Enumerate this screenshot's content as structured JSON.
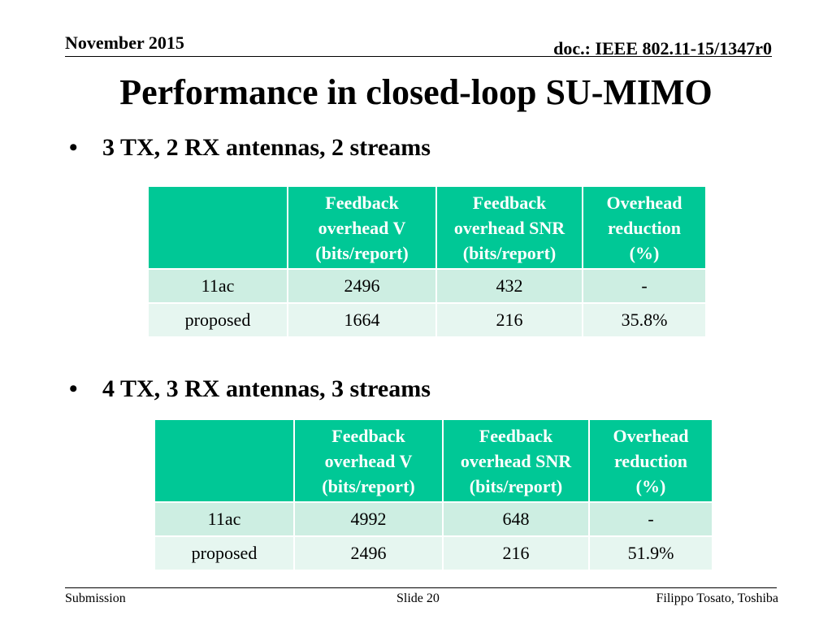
{
  "header": {
    "date": "November 2015",
    "doc": "doc.: IEEE 802.11-15/1347r0"
  },
  "title": "Performance in closed-loop SU-MIMO",
  "sections": [
    {
      "bullet": "3 TX, 2 RX antennas, 2 streams",
      "table": {
        "headers": [
          "",
          "Feedback overhead V (bits/report)",
          "Feedback overhead SNR (bits/report)",
          "Overhead reduction (%)"
        ],
        "header_lines": [
          [
            ""
          ],
          [
            "Feedback",
            "overhead V",
            "(bits/report)"
          ],
          [
            "Feedback",
            "overhead SNR",
            "(bits/report)"
          ],
          [
            "Overhead",
            "reduction",
            "(%)"
          ]
        ],
        "rows": [
          [
            "11ac",
            "2496",
            "432",
            "-"
          ],
          [
            "proposed",
            "1664",
            "216",
            "35.8%"
          ]
        ]
      }
    },
    {
      "bullet": "4 TX, 3 RX antennas, 3 streams",
      "table": {
        "headers": [
          "",
          "Feedback overhead V (bits/report)",
          "Feedback overhead SNR (bits/report)",
          "Overhead reduction (%)"
        ],
        "header_lines": [
          [
            ""
          ],
          [
            "Feedback",
            "overhead V",
            "(bits/report)"
          ],
          [
            "Feedback",
            "overhead SNR",
            "(bits/report)"
          ],
          [
            "Overhead",
            "reduction",
            "(%)"
          ]
        ],
        "rows": [
          [
            "11ac",
            "4992",
            "648",
            "-"
          ],
          [
            "proposed",
            "2496",
            "216",
            "51.9%"
          ]
        ]
      }
    }
  ],
  "footer": {
    "left": "Submission",
    "center": "Slide 20",
    "right": "Filippo Tosato, Toshiba"
  },
  "colors": {
    "header_fill": "#00c896",
    "row1_fill": "#cdeee2",
    "row2_fill": "#e6f6f0"
  }
}
